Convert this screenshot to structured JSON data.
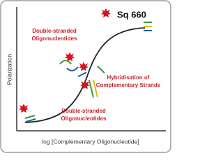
{
  "product": "Sq 660",
  "axes": {
    "y_label": "Polarization",
    "x_label": "log [Complementary Oligonucleotide]"
  },
  "labels": [
    {
      "lines": [
        "Double-stranded",
        "Oligonucleotides"
      ]
    },
    {
      "lines": [
        "Hybridisation of",
        "Complementary Strands"
      ]
    },
    {
      "lines": [
        "Double-stranded",
        "Oligonucleotides"
      ]
    }
  ]
}
